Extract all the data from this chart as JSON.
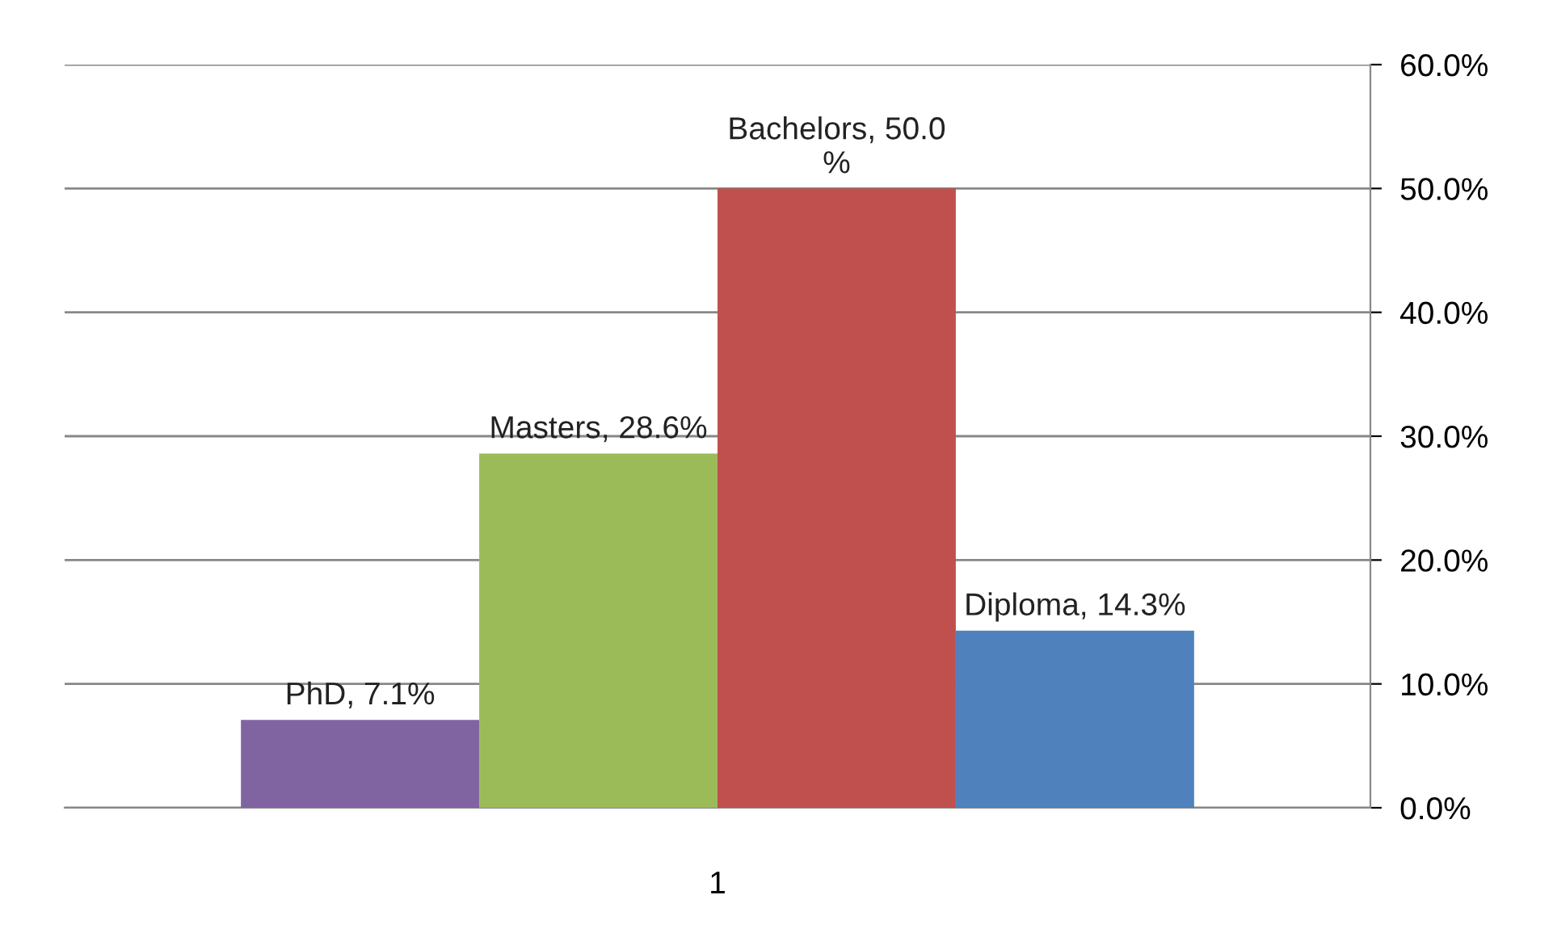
{
  "chart_data": {
    "type": "bar",
    "categories": [
      "1"
    ],
    "series": [
      {
        "color": "#8064a2",
        "values": [
          7.1
        ],
        "value_labels": [
          "PhD, 7.1%"
        ]
      },
      {
        "color": "#9bbb59",
        "values": [
          28.6
        ],
        "value_labels": [
          "Masters, 28.6%"
        ]
      },
      {
        "color": "#c0504d",
        "values": [
          50.0
        ],
        "value_labels": [
          "Bachelors, 50.0\n%"
        ]
      },
      {
        "color": "#4f81bd",
        "values": [
          14.3
        ],
        "value_labels": [
          "Diploma, 14.3%"
        ]
      }
    ],
    "ylim": [
      0,
      60
    ],
    "yticks": [
      {
        "value": 0,
        "label": "0.0%"
      },
      {
        "value": 10,
        "label": "10.0%"
      },
      {
        "value": 20,
        "label": "20.0%"
      },
      {
        "value": 30,
        "label": "30.0%"
      },
      {
        "value": 40,
        "label": "40.0%"
      },
      {
        "value": 50,
        "label": "50.0%"
      },
      {
        "value": 60,
        "label": "60.0%"
      }
    ],
    "grid": "y",
    "legend": false
  }
}
